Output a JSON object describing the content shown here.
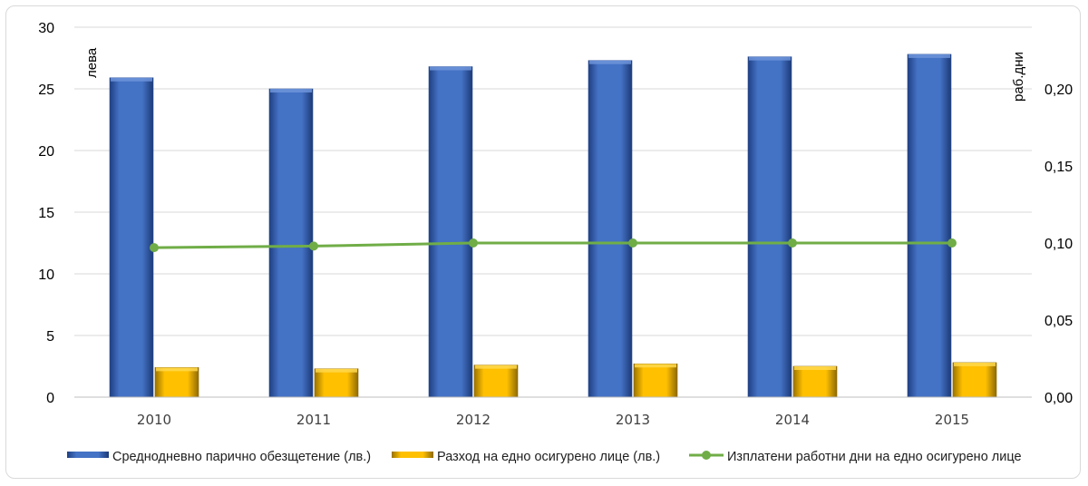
{
  "chart_data": {
    "type": "bar",
    "categories": [
      "2010",
      "2011",
      "2012",
      "2013",
      "2014",
      "2015"
    ],
    "series": [
      {
        "name": "Среднодневно парично обезщетение (лв.)",
        "axis": "left",
        "kind": "bar",
        "color": "#4472C4",
        "values": [
          25.9,
          25.0,
          26.8,
          27.3,
          27.6,
          27.8
        ]
      },
      {
        "name": "Разход на едно осигурено лице (лв.)",
        "axis": "left",
        "kind": "bar",
        "color": "#FFC000",
        "values": [
          2.4,
          2.3,
          2.6,
          2.7,
          2.5,
          2.8
        ]
      },
      {
        "name": "Изплатени работни дни на едно осигурено лице",
        "axis": "right",
        "kind": "line",
        "color": "#70AD47",
        "values": [
          0.097,
          0.098,
          0.1,
          0.1,
          0.1,
          0.1
        ]
      }
    ],
    "ylabel": "лева",
    "y2label": "раб.дни",
    "ylim": [
      0,
      30
    ],
    "y2lim": [
      0,
      0.24
    ],
    "yticks": [
      "0",
      "5",
      "10",
      "15",
      "20",
      "25",
      "30"
    ],
    "y2ticks": [
      "0,00",
      "0,05",
      "0,10",
      "0,15",
      "0,20"
    ],
    "grid": true,
    "legend": "bottom"
  }
}
